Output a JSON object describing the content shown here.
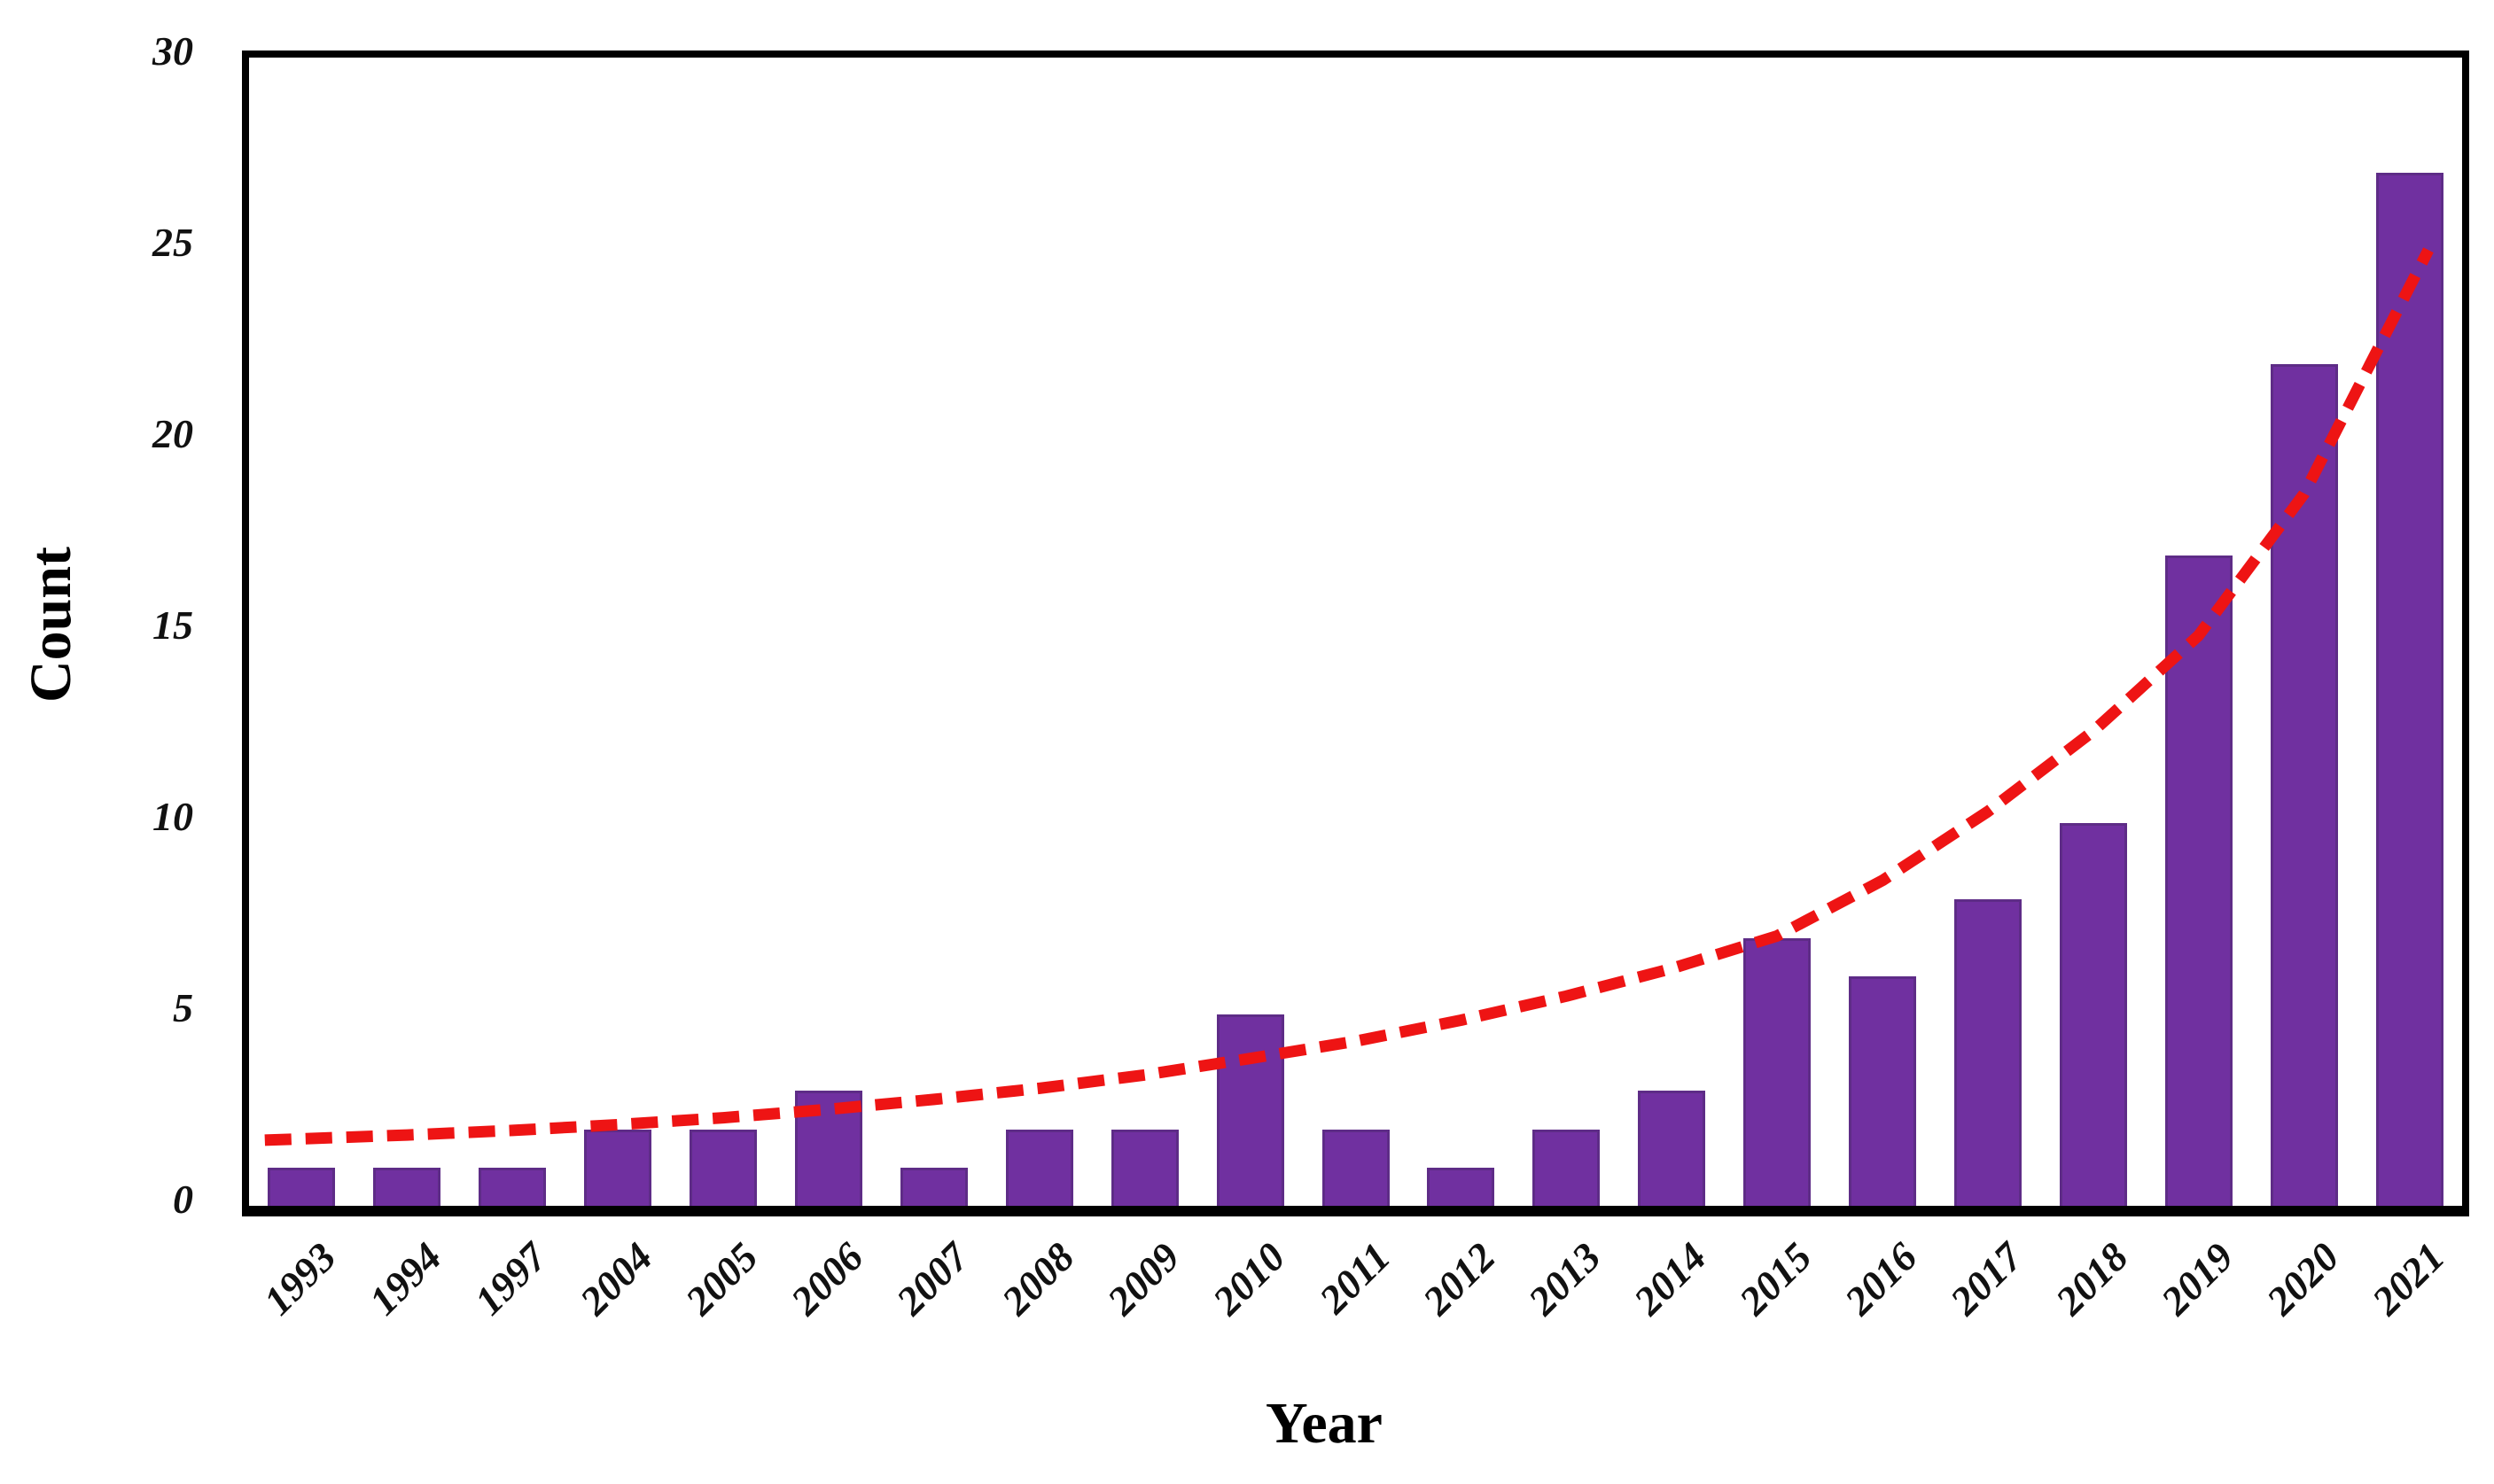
{
  "chart_data": {
    "type": "bar",
    "title": "",
    "xlabel": "Year",
    "ylabel": "Count",
    "categories": [
      "1993",
      "1994",
      "1997",
      "2004",
      "2005",
      "2006",
      "2007",
      "2008",
      "2009",
      "2010",
      "2011",
      "2012",
      "2013",
      "2014",
      "2015",
      "2016",
      "2017",
      "2018",
      "2019",
      "2020",
      "2021"
    ],
    "values": [
      1,
      1,
      1,
      2,
      2,
      3,
      1,
      2,
      2,
      5,
      2,
      1,
      2,
      3,
      7,
      6,
      8,
      10,
      17,
      22,
      27
    ],
    "ylim": [
      0,
      30
    ],
    "yticks": [
      0,
      5,
      10,
      15,
      20,
      25,
      30
    ],
    "grid": false,
    "legend": "none",
    "bar_color": "#7030A0",
    "bar_edge_color": "#5E2C87",
    "frame_color": "#000000",
    "trendline": {
      "style": "dashed",
      "color": "#EE1414",
      "values": [
        1.75,
        1.85,
        1.97,
        2.12,
        2.3,
        2.52,
        2.78,
        3.07,
        3.42,
        3.85,
        4.3,
        4.85,
        5.48,
        6.2,
        7.05,
        8.5,
        10.3,
        12.4,
        14.9,
        18.6,
        24.0
      ]
    }
  }
}
